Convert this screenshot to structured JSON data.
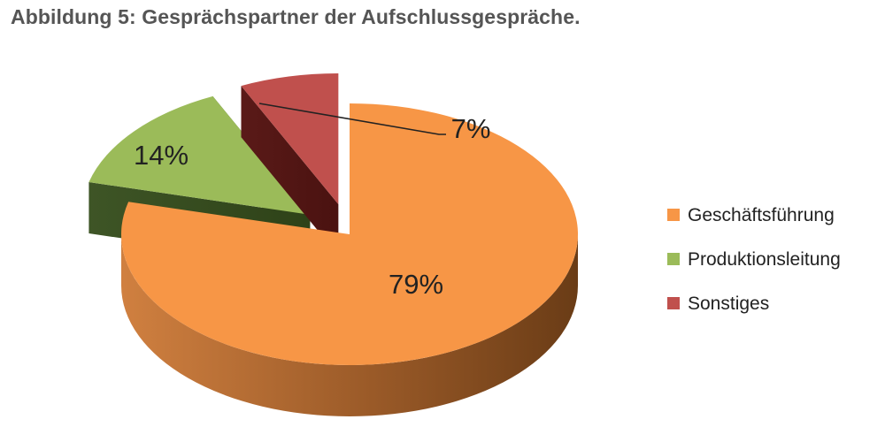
{
  "title": "Abbildung 5: Gesprächspartner der Aufschlussgespräche.",
  "chart_data": {
    "type": "pie",
    "title": "Abbildung 5: Gesprächspartner der Aufschlussgespräche.",
    "categories": [
      "Geschäftsführung",
      "Produktionsleitung",
      "Sonstiges"
    ],
    "values": [
      79,
      14,
      7
    ],
    "data_labels": [
      "79%",
      "14%",
      "7%"
    ],
    "colors": [
      "#F79646",
      "#9BBB59",
      "#C0504D"
    ],
    "style": "3d-exploded",
    "legend_position": "right"
  }
}
